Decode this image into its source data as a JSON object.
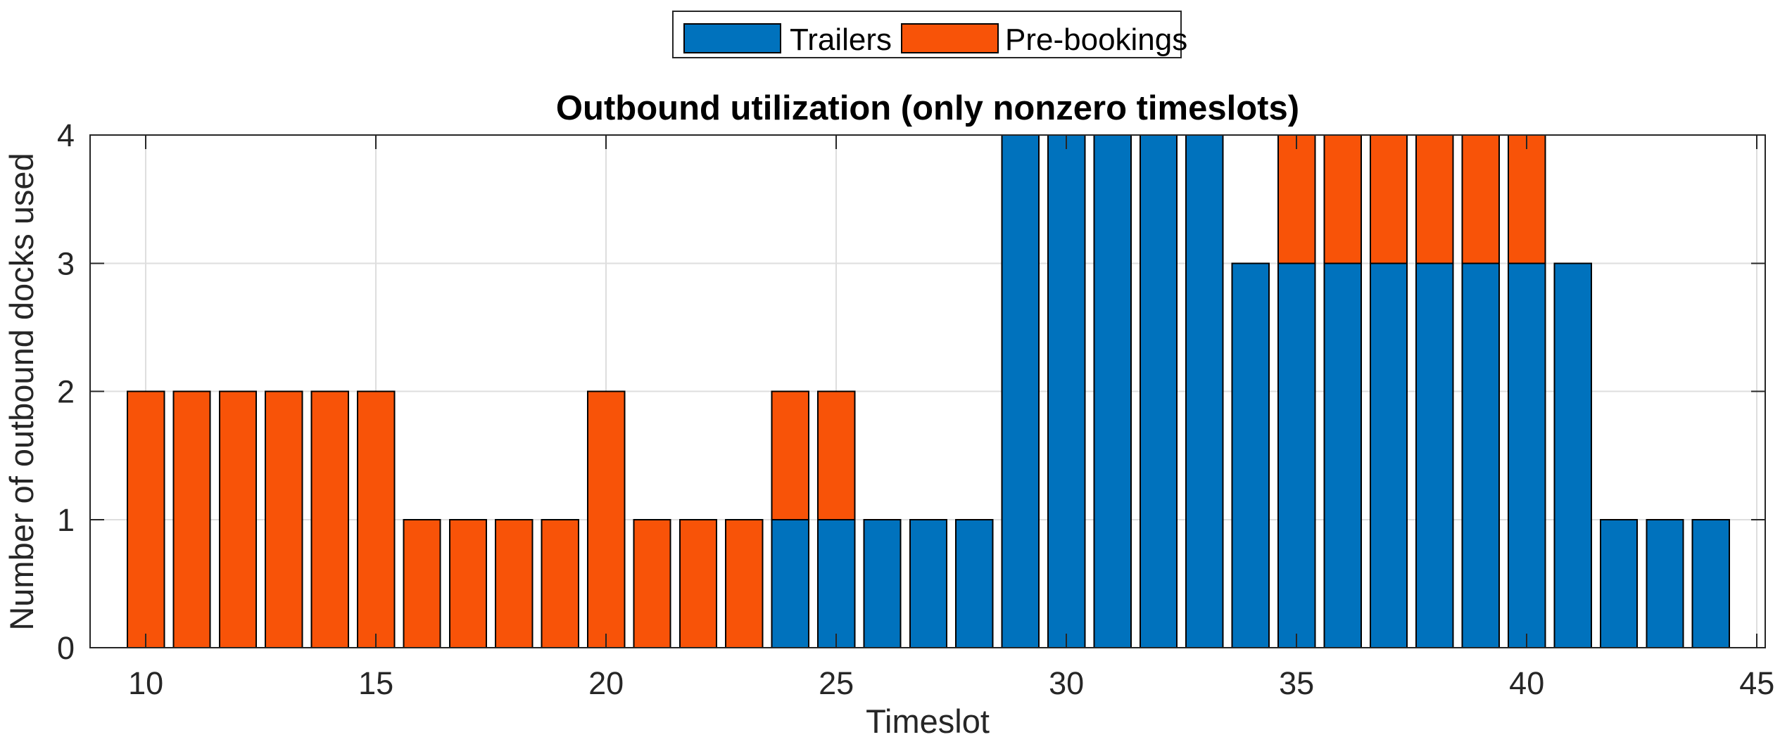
{
  "figure": {
    "background": "#FFFFFF"
  },
  "chart_data": {
    "type": "bar",
    "stacked": true,
    "title": "Outbound utilization (only nonzero timeslots)",
    "xlabel": "Timeslot",
    "ylabel": "Number of outbound docks used",
    "categories": [
      10,
      11,
      12,
      13,
      14,
      15,
      16,
      17,
      18,
      19,
      20,
      21,
      22,
      23,
      24,
      25,
      26,
      27,
      28,
      29,
      30,
      31,
      32,
      33,
      34,
      35,
      36,
      37,
      38,
      39,
      40,
      41,
      42,
      43,
      44
    ],
    "series": [
      {
        "name": "Trailers",
        "color": "#0072BD",
        "values": [
          0,
          0,
          0,
          0,
          0,
          0,
          0,
          0,
          0,
          0,
          0,
          0,
          0,
          0,
          1,
          1,
          1,
          1,
          1,
          4,
          4,
          4,
          4,
          4,
          3,
          3,
          3,
          3,
          3,
          3,
          3,
          3,
          1,
          1,
          1
        ]
      },
      {
        "name": "Pre-bookings",
        "color": "#F85308",
        "values": [
          2,
          2,
          2,
          2,
          2,
          2,
          1,
          1,
          1,
          1,
          2,
          1,
          1,
          1,
          1,
          1,
          0,
          0,
          0,
          0,
          0,
          0,
          0,
          0,
          0,
          1,
          1,
          1,
          1,
          1,
          1,
          0,
          0,
          0,
          0
        ]
      }
    ],
    "totals": [
      2,
      2,
      2,
      2,
      2,
      2,
      1,
      1,
      1,
      1,
      2,
      1,
      1,
      1,
      2,
      2,
      1,
      1,
      1,
      4,
      4,
      4,
      4,
      4,
      3,
      4,
      4,
      4,
      4,
      4,
      4,
      3,
      1,
      1,
      1
    ],
    "xlim": [
      8.79,
      45.18
    ],
    "ylim": [
      0,
      4
    ],
    "xticks": [
      10,
      15,
      20,
      25,
      30,
      35,
      40,
      45
    ],
    "yticks": [
      0,
      1,
      2,
      3,
      4
    ],
    "grid": true,
    "bar_width": 0.8,
    "legend": {
      "position": "above-plot-center",
      "entries": [
        "Trailers",
        "Pre-bookings"
      ]
    },
    "colors": {
      "axis": "#262626",
      "grid": "#DEDEDE",
      "bar_edge": "#000000",
      "tick_label": "#262626",
      "background": "#FFFFFF"
    }
  }
}
